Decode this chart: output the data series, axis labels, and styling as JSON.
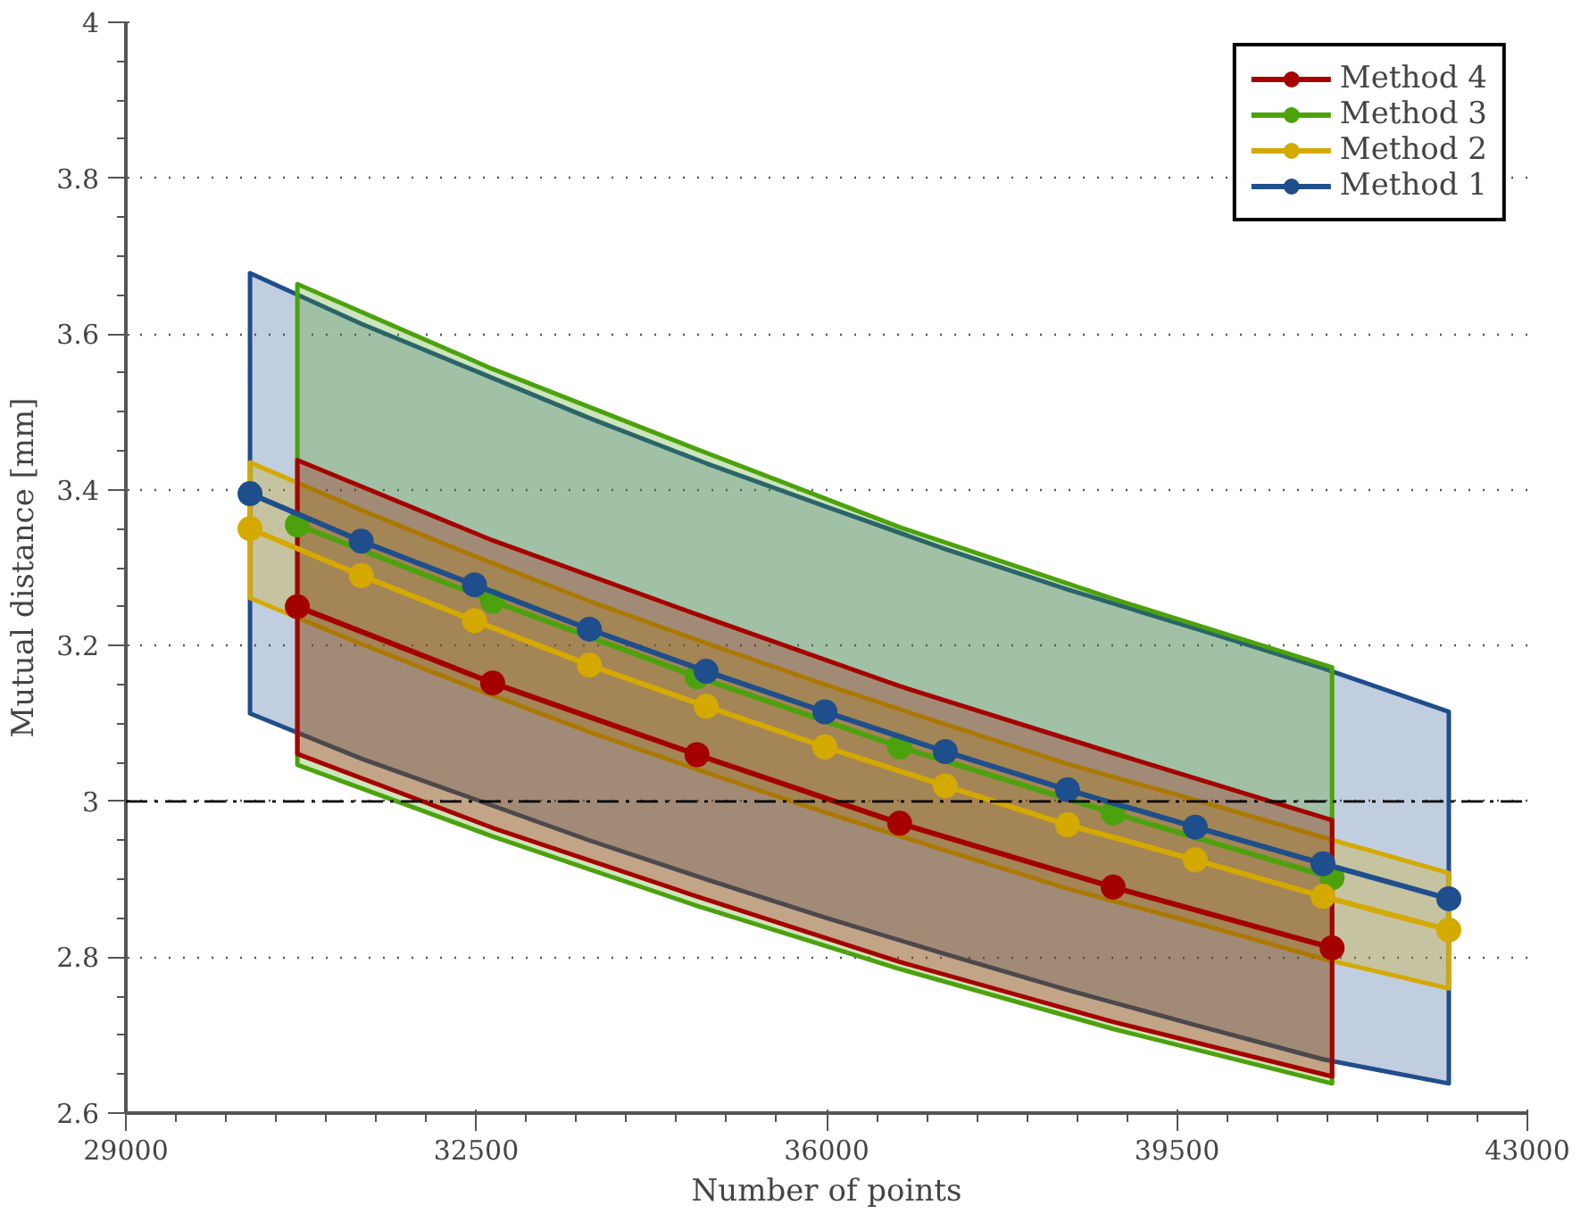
{
  "chart_data": {
    "type": "line",
    "xlabel": "Number of points",
    "ylabel": "Mutual distance [mm]",
    "xlim": [
      29000,
      43000
    ],
    "ylim": [
      2.6,
      4
    ],
    "xticks": [
      29000,
      32500,
      36000,
      39500,
      43000,
      {
        "value": 29500,
        "label": null
      },
      {
        "value": 30000,
        "label": null
      },
      {
        "value": 30500,
        "label": null
      },
      {
        "value": 31000,
        "label": null
      },
      {
        "value": 31500,
        "label": null
      },
      {
        "value": 32000,
        "label": null
      },
      {
        "value": 33000,
        "label": null
      },
      {
        "value": 33500,
        "label": null
      },
      {
        "value": 34000,
        "label": null
      },
      {
        "value": 34500,
        "label": null
      },
      {
        "value": 35000,
        "label": null
      },
      {
        "value": 35500,
        "label": null
      },
      {
        "value": 36500,
        "label": null
      },
      {
        "value": 37000,
        "label": null
      },
      {
        "value": 37500,
        "label": null
      },
      {
        "value": 38000,
        "label": null
      },
      {
        "value": 38500,
        "label": null
      },
      {
        "value": 39000,
        "label": null
      },
      {
        "value": 40000,
        "label": null
      },
      {
        "value": 40500,
        "label": null
      },
      {
        "value": 41000,
        "label": null
      },
      {
        "value": 41500,
        "label": null
      },
      {
        "value": 42000,
        "label": null
      },
      {
        "value": 42500,
        "label": null
      }
    ],
    "yticks": [
      2.6,
      2.8,
      3,
      3.2,
      3.4,
      3.6,
      3.8,
      4,
      {
        "value": 2.65,
        "label": null
      },
      {
        "value": 2.7,
        "label": null
      },
      {
        "value": 2.75,
        "label": null
      },
      {
        "value": 2.85,
        "label": null
      },
      {
        "value": 2.9,
        "label": null
      },
      {
        "value": 2.95,
        "label": null
      },
      {
        "value": 3.05,
        "label": null
      },
      {
        "value": 3.1,
        "label": null
      },
      {
        "value": 3.15,
        "label": null
      },
      {
        "value": 3.25,
        "label": null
      },
      {
        "value": 3.3,
        "label": null
      },
      {
        "value": 3.35,
        "label": null
      },
      {
        "value": 3.45,
        "label": null
      },
      {
        "value": 3.5,
        "label": null
      },
      {
        "value": 3.55,
        "label": null
      },
      {
        "value": 3.65,
        "label": null
      },
      {
        "value": 3.7,
        "label": null
      },
      {
        "value": 3.75,
        "label": null
      },
      {
        "value": 3.85,
        "label": null
      },
      {
        "value": 3.9,
        "label": null
      },
      {
        "value": 3.95,
        "label": null
      }
    ],
    "grid": "y",
    "legend": "top right",
    "marker": "circle",
    "line_style": "solid",
    "ref_lines": [
      {
        "axis": "y",
        "value": 3,
        "color": "#000000",
        "line_style": "dashdot"
      }
    ],
    "series": [
      {
        "name": "Method 4",
        "color": "#a50000",
        "x": [
          30713,
          32664,
          34705,
          36729,
          38862,
          41049
        ],
        "values": [
          3.25,
          3.152,
          3.06,
          2.972,
          2.89,
          2.812
        ],
        "upper": [
          3.438,
          3.335,
          3.24,
          3.148,
          3.062,
          2.976
        ],
        "lower": [
          3.061,
          2.966,
          2.878,
          2.794,
          2.717,
          2.647
        ]
      },
      {
        "name": "Method 3",
        "color": "#4ca20d",
        "x": [
          30713,
          32664,
          34705,
          36729,
          38862,
          41049
        ],
        "values": [
          3.355,
          3.257,
          3.16,
          3.07,
          2.985,
          2.902
        ],
        "upper": [
          3.664,
          3.555,
          3.452,
          3.352,
          3.26,
          3.172
        ],
        "lower": [
          3.047,
          2.955,
          2.866,
          2.785,
          2.708,
          2.638
        ]
      },
      {
        "name": "Method 2",
        "color": "#d4a900",
        "x": [
          30240,
          31351,
          32482,
          33630,
          34797,
          35982,
          37185,
          38406,
          39682,
          40958,
          42215
        ],
        "values": [
          3.35,
          3.29,
          3.232,
          3.175,
          3.122,
          3.07,
          3.02,
          2.97,
          2.925,
          2.878,
          2.835
        ],
        "upper": [
          3.435,
          3.374,
          3.315,
          3.257,
          3.203,
          3.15,
          3.099,
          3.048,
          3.002,
          2.954,
          2.908
        ],
        "lower": [
          3.261,
          3.202,
          3.145,
          3.089,
          3.037,
          2.986,
          2.937,
          2.888,
          2.844,
          2.798,
          2.76
        ]
      },
      {
        "name": "Method 1",
        "color": "#1f4e8c",
        "x": [
          30240,
          31351,
          32482,
          33630,
          34797,
          35982,
          37185,
          38406,
          39682,
          40958,
          42215
        ],
        "values": [
          3.395,
          3.334,
          3.278,
          3.221,
          3.167,
          3.115,
          3.064,
          3.015,
          2.967,
          2.92,
          2.875
        ],
        "upper": [
          3.678,
          3.613,
          3.553,
          3.492,
          3.434,
          3.379,
          3.324,
          3.272,
          3.222,
          3.171,
          3.115
        ],
        "lower": [
          3.113,
          3.055,
          3.003,
          2.95,
          2.9,
          2.851,
          2.804,
          2.758,
          2.713,
          2.669,
          2.638
        ]
      }
    ]
  }
}
